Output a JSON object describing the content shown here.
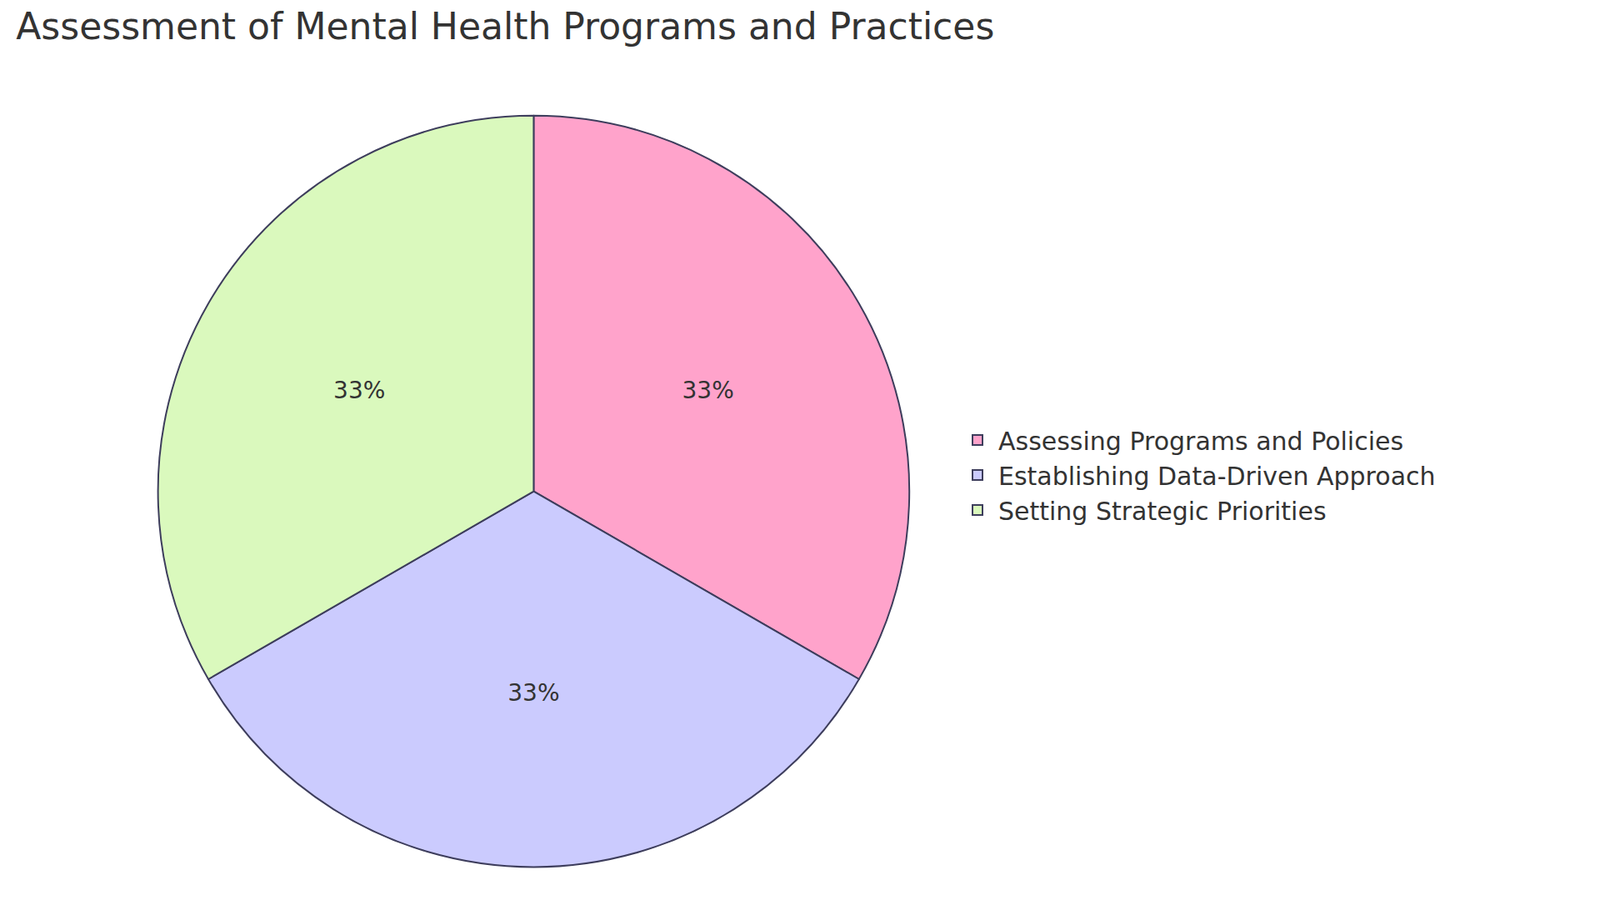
{
  "chart_data": {
    "type": "pie",
    "title": "Assessment of Mental Health Programs and Practices",
    "categories": [
      "Assessing Programs and Policies",
      "Establishing Data-Driven Approach",
      "Setting Strategic Priorities"
    ],
    "values": [
      33,
      33,
      33
    ],
    "value_labels": [
      "33%",
      "33%",
      "33%"
    ],
    "colors": [
      "#ffa3cb",
      "#cbcbfe",
      "#daf9bd"
    ],
    "data_labels": true,
    "legend": "right"
  }
}
